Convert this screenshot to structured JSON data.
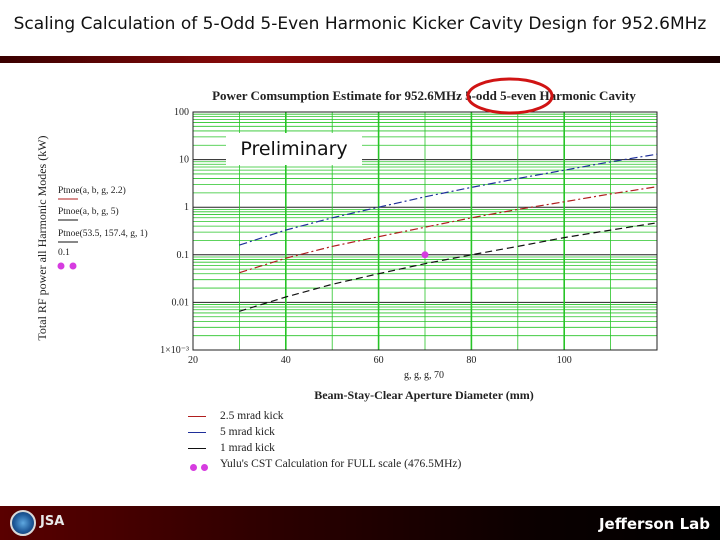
{
  "slide": {
    "title": "Scaling Calculation of 5-Odd 5-Even Harmonic Kicker Cavity Design for 952.6MHz",
    "overlay_label": "Preliminary",
    "footer_logo_text": "Jefferson Lab",
    "footer_left_logo_text": "JSA"
  },
  "colors": {
    "accent_red": "#8b0a0a",
    "series_blue": "#1f2f9a",
    "series_red": "#b01e1e",
    "series_black": "#111111",
    "marker_magenta": "#d63ce0",
    "grid_green": "#27c427",
    "highlight_circle": "#d01414"
  },
  "chart_data": {
    "type": "line",
    "title": "Power Comsumption Estimate for 952.6MHz 5-odd 5-even Harmonic Cavity",
    "xlabel": "Beam-Stay-Clear Aperture Diameter (mm)",
    "ylabel": "Total RF power all Harmonic Modes (kW)",
    "x_axis_var_label": "g, g, g, 70",
    "y_scale": "log",
    "xlim": [
      20,
      120
    ],
    "ylim": [
      0.001,
      100
    ],
    "x_ticks": [
      20,
      40,
      60,
      80,
      100
    ],
    "y_ticks": [
      "1×10⁻³",
      "0.01",
      "0.1",
      "1",
      "10",
      "100"
    ],
    "grid": true,
    "yaxis_side_labels": [
      "Ptnoe(a, b, g, 2.2)",
      "Ptnoe(a, b, g, 5)",
      "Ptnoe(53.5, 157.4, g, 1)",
      "0.1"
    ],
    "series": [
      {
        "name": "5 mrad kick",
        "style": "dash-dot",
        "x": [
          30,
          40,
          50,
          60,
          70,
          80,
          90,
          100,
          110,
          120
        ],
        "y": [
          0.16,
          0.33,
          0.6,
          1.0,
          1.65,
          2.6,
          4.0,
          6.0,
          9.0,
          13.0
        ]
      },
      {
        "name": "2.5 mrad kick",
        "style": "dash-dot",
        "x": [
          30,
          40,
          50,
          60,
          70,
          80,
          90,
          100,
          110,
          120
        ],
        "y": [
          0.042,
          0.085,
          0.15,
          0.24,
          0.38,
          0.6,
          0.9,
          1.3,
          1.9,
          2.7
        ]
      },
      {
        "name": "1 mrad kick",
        "style": "dashed",
        "x": [
          30,
          40,
          50,
          60,
          70,
          80,
          90,
          100,
          110,
          120
        ],
        "y": [
          0.0065,
          0.013,
          0.024,
          0.04,
          0.065,
          0.1,
          0.15,
          0.23,
          0.33,
          0.47
        ]
      }
    ],
    "markers": {
      "name": "Yulu's CST Calculation for FULL scale (476.5MHz)",
      "x": [
        70
      ],
      "y": [
        0.1
      ]
    },
    "legend": {
      "placement": "bottom",
      "entries": [
        {
          "label": "2.5 mrad kick",
          "kind": "line-red"
        },
        {
          "label": "5 mrad kick",
          "kind": "line-blue"
        },
        {
          "label": "1 mrad kick",
          "kind": "line-black"
        },
        {
          "label": "Yulu's CST Calculation for FULL scale (476.5MHz)",
          "kind": "markers"
        }
      ]
    }
  }
}
